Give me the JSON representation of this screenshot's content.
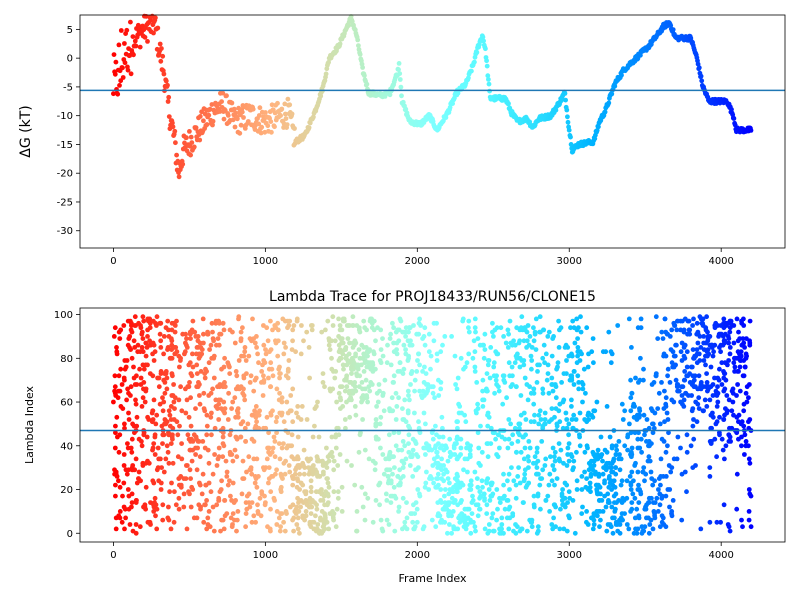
{
  "chart_data": [
    {
      "type": "scatter",
      "title": "",
      "xlabel": "",
      "ylabel": "ΔG (kT)",
      "xlim": [
        -220,
        4420
      ],
      "ylim": [
        -33,
        7.5
      ],
      "xticks": [
        0,
        1000,
        2000,
        3000,
        4000
      ],
      "yticks": [
        5,
        0,
        -5,
        -10,
        -15,
        -20,
        -25,
        -30
      ],
      "reference_line": {
        "y": -5.6,
        "color": "#1f77b4"
      },
      "grid": false,
      "colormap": "rainbow (red at frame 0 → violet at last frame)",
      "x_count": 4200,
      "trace_keypoints": [
        [
          20,
          -5
        ],
        [
          60,
          0
        ],
        [
          130,
          3
        ],
        [
          200,
          5
        ],
        [
          270,
          6
        ],
        [
          300,
          2
        ],
        [
          330,
          -2
        ],
        [
          360,
          -8
        ],
        [
          400,
          -14
        ],
        [
          430,
          -20
        ],
        [
          460,
          -16
        ],
        [
          520,
          -14
        ],
        [
          600,
          -11
        ],
        [
          660,
          -9
        ],
        [
          720,
          -8
        ],
        [
          800,
          -11
        ],
        [
          900,
          -10
        ],
        [
          1000,
          -11
        ],
        [
          1100,
          -10
        ],
        [
          1150,
          -9.5
        ],
        [
          1200,
          -14.5
        ],
        [
          1260,
          -13.5
        ],
        [
          1330,
          -9
        ],
        [
          1380,
          -5
        ],
        [
          1420,
          0
        ],
        [
          1480,
          2
        ],
        [
          1530,
          5
        ],
        [
          1565,
          7
        ],
        [
          1600,
          4
        ],
        [
          1640,
          -2
        ],
        [
          1680,
          -6
        ],
        [
          1760,
          -6.5
        ],
        [
          1820,
          -6
        ],
        [
          1870,
          -2.5
        ],
        [
          1880,
          -1
        ],
        [
          1900,
          -7.5
        ],
        [
          1950,
          -11
        ],
        [
          2020,
          -11.5
        ],
        [
          2080,
          -10
        ],
        [
          2130,
          -12.5
        ],
        [
          2200,
          -9.5
        ],
        [
          2260,
          -6
        ],
        [
          2320,
          -4.5
        ],
        [
          2370,
          -1
        ],
        [
          2400,
          2
        ],
        [
          2430,
          4
        ],
        [
          2450,
          1
        ],
        [
          2480,
          -7
        ],
        [
          2580,
          -7
        ],
        [
          2620,
          -9.5
        ],
        [
          2660,
          -11
        ],
        [
          2720,
          -10.5
        ],
        [
          2760,
          -12
        ],
        [
          2800,
          -10.5
        ],
        [
          2880,
          -10
        ],
        [
          2940,
          -7.5
        ],
        [
          2970,
          -6
        ],
        [
          3000,
          -12.5
        ],
        [
          3020,
          -16
        ],
        [
          3060,
          -15
        ],
        [
          3160,
          -14.5
        ],
        [
          3200,
          -11
        ],
        [
          3240,
          -9
        ],
        [
          3300,
          -4.5
        ],
        [
          3360,
          -2
        ],
        [
          3400,
          -1
        ],
        [
          3460,
          0.5
        ],
        [
          3520,
          2
        ],
        [
          3580,
          4
        ],
        [
          3620,
          5.5
        ],
        [
          3660,
          6.2
        ],
        [
          3700,
          3.5
        ],
        [
          3800,
          3.5
        ],
        [
          3840,
          0
        ],
        [
          3880,
          -5
        ],
        [
          3920,
          -7.5
        ],
        [
          4040,
          -7.5
        ],
        [
          4080,
          -10
        ],
        [
          4100,
          -12.5
        ],
        [
          4200,
          -12.5
        ]
      ]
    },
    {
      "type": "scatter",
      "title": "Lambda Trace for PROJ18433/RUN56/CLONE15",
      "xlabel": "Frame Index",
      "ylabel": "Lambda Index",
      "xlim": [
        -220,
        4420
      ],
      "ylim": [
        -4,
        103
      ],
      "xticks": [
        0,
        1000,
        2000,
        3000,
        4000
      ],
      "yticks": [
        0,
        20,
        40,
        60,
        80,
        100
      ],
      "reference_line": {
        "y": 47,
        "color": "#1f77b4"
      },
      "grid": false,
      "colormap": "rainbow (red at frame 0 → violet at last frame)",
      "x_count": 4200,
      "value_range": [
        0,
        99
      ],
      "approx_points": 3000,
      "density_keypoints": [
        {
          "x": 1300,
          "band": [
            0,
            35
          ]
        },
        {
          "x": 1600,
          "band": [
            60,
            99
          ]
        },
        {
          "x": 2250,
          "band": [
            0,
            45
          ]
        },
        {
          "x": 3250,
          "band": [
            0,
            40
          ]
        },
        {
          "x": 3450,
          "band": [
            0,
            60
          ]
        },
        {
          "x": 3800,
          "band": [
            55,
            99
          ]
        },
        {
          "x": 4050,
          "band": [
            40,
            99
          ]
        }
      ]
    }
  ]
}
